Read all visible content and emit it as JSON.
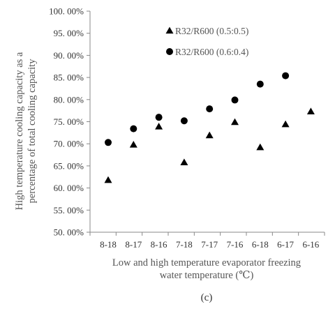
{
  "chart_data": {
    "type": "scatter",
    "categories": [
      "8-18",
      "8-17",
      "8-16",
      "7-18",
      "7-17",
      "7-16",
      "6-18",
      "6-17",
      "6-16"
    ],
    "series": [
      {
        "name": "R32/R600 (0.5:0.5)",
        "marker": "triangle",
        "color": "#000000",
        "values": [
          61.8,
          69.8,
          73.9,
          65.8,
          71.9,
          74.9,
          69.2,
          74.4,
          77.3
        ]
      },
      {
        "name": "R32/R600 (0.6:0.4)",
        "marker": "circle",
        "color": "#000000",
        "values": [
          70.3,
          73.4,
          76.0,
          75.2,
          77.9,
          79.9,
          83.5,
          85.4,
          null
        ]
      }
    ],
    "ylabel_lines": [
      "High temperature cooling capacity as a",
      "percentage of total cooling capacity"
    ],
    "xlabel_lines": [
      "Low and high temperature evaporator freezing",
      "water temperature (℃)"
    ],
    "ylim": [
      50,
      100
    ],
    "y_ticks": [
      "50. 00%",
      "55. 00%",
      "60. 00%",
      "65. 00%",
      "70. 00%",
      "75. 00%",
      "80. 00%",
      "85. 00%",
      "90. 00%",
      "95. 00%",
      "100. 00%"
    ],
    "grid": false,
    "legend_position": "top-center",
    "caption": "(c)"
  }
}
